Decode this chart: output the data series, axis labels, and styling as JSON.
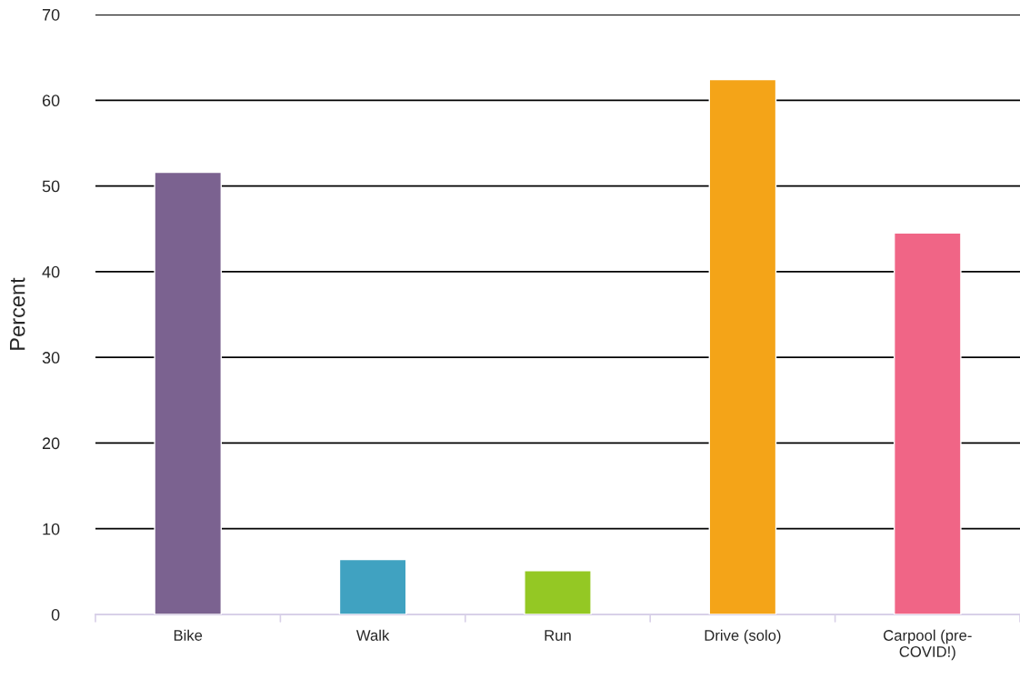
{
  "chart_data": {
    "type": "bar",
    "ylabel": "Percent",
    "categories": [
      "Bike",
      "Walk",
      "Run",
      "Drive (solo)",
      "Carpool (pre-COVID!)"
    ],
    "values": [
      51.6,
      6.4,
      5.1,
      62.4,
      44.5
    ],
    "colors": [
      "#7b6290",
      "#40a2c1",
      "#94c824",
      "#f4a418",
      "#f06586"
    ],
    "ylim": [
      0,
      70
    ],
    "yticks": [
      0,
      10,
      20,
      30,
      40,
      50,
      60,
      70
    ],
    "grid": "y"
  }
}
